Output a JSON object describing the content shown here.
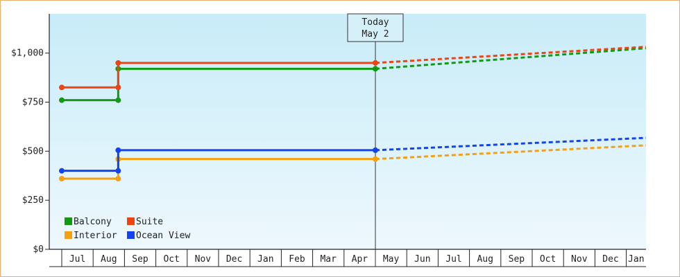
{
  "chart_data": {
    "type": "line",
    "title": "",
    "xlabel": "",
    "ylabel": "",
    "ylim": [
      0,
      1200
    ],
    "y_ticks": [
      {
        "value": 0,
        "label": "$0"
      },
      {
        "value": 250,
        "label": "$250"
      },
      {
        "value": 500,
        "label": "$500"
      },
      {
        "value": 750,
        "label": "$750"
      },
      {
        "value": 1000,
        "label": "$1,000"
      }
    ],
    "x_tick_labels": [
      "Jul",
      "Aug",
      "Sep",
      "Oct",
      "Nov",
      "Dec",
      "Jan",
      "Feb",
      "Mar",
      "Apr",
      "May",
      "Jun",
      "Jul",
      "Aug",
      "Sep",
      "Oct",
      "Nov",
      "Dec",
      "Jan"
    ],
    "today_marker": {
      "line1": "Today",
      "line2": "May 2",
      "month_index": 10.0
    },
    "grid": false,
    "legend_position": "bottom-left",
    "series": [
      {
        "name": "Balcony",
        "color": "#119911",
        "steps": [
          {
            "x": 0,
            "y": 760
          },
          {
            "x": 1.8,
            "y": 760
          },
          {
            "x": 1.8,
            "y": 920
          },
          {
            "x": 10.0,
            "y": 920
          }
        ],
        "forecast": [
          {
            "x": 10.0,
            "y": 920
          },
          {
            "x": 19.4,
            "y": 1025
          }
        ]
      },
      {
        "name": "Suite",
        "color": "#ee4411",
        "steps": [
          {
            "x": 0,
            "y": 825
          },
          {
            "x": 1.8,
            "y": 825
          },
          {
            "x": 1.8,
            "y": 950
          },
          {
            "x": 10.0,
            "y": 950
          }
        ],
        "forecast": [
          {
            "x": 10.0,
            "y": 950
          },
          {
            "x": 19.4,
            "y": 1032
          }
        ]
      },
      {
        "name": "Interior",
        "color": "#f5a010",
        "steps": [
          {
            "x": 0,
            "y": 360
          },
          {
            "x": 1.8,
            "y": 360
          },
          {
            "x": 1.8,
            "y": 460
          },
          {
            "x": 10.0,
            "y": 460
          }
        ],
        "forecast": [
          {
            "x": 10.0,
            "y": 460
          },
          {
            "x": 19.4,
            "y": 530
          }
        ]
      },
      {
        "name": "Ocean View",
        "color": "#1144ee",
        "steps": [
          {
            "x": 0,
            "y": 400
          },
          {
            "x": 1.8,
            "y": 400
          },
          {
            "x": 1.8,
            "y": 505
          },
          {
            "x": 10.0,
            "y": 505
          }
        ],
        "forecast": [
          {
            "x": 10.0,
            "y": 505
          },
          {
            "x": 19.4,
            "y": 568
          }
        ]
      }
    ]
  }
}
